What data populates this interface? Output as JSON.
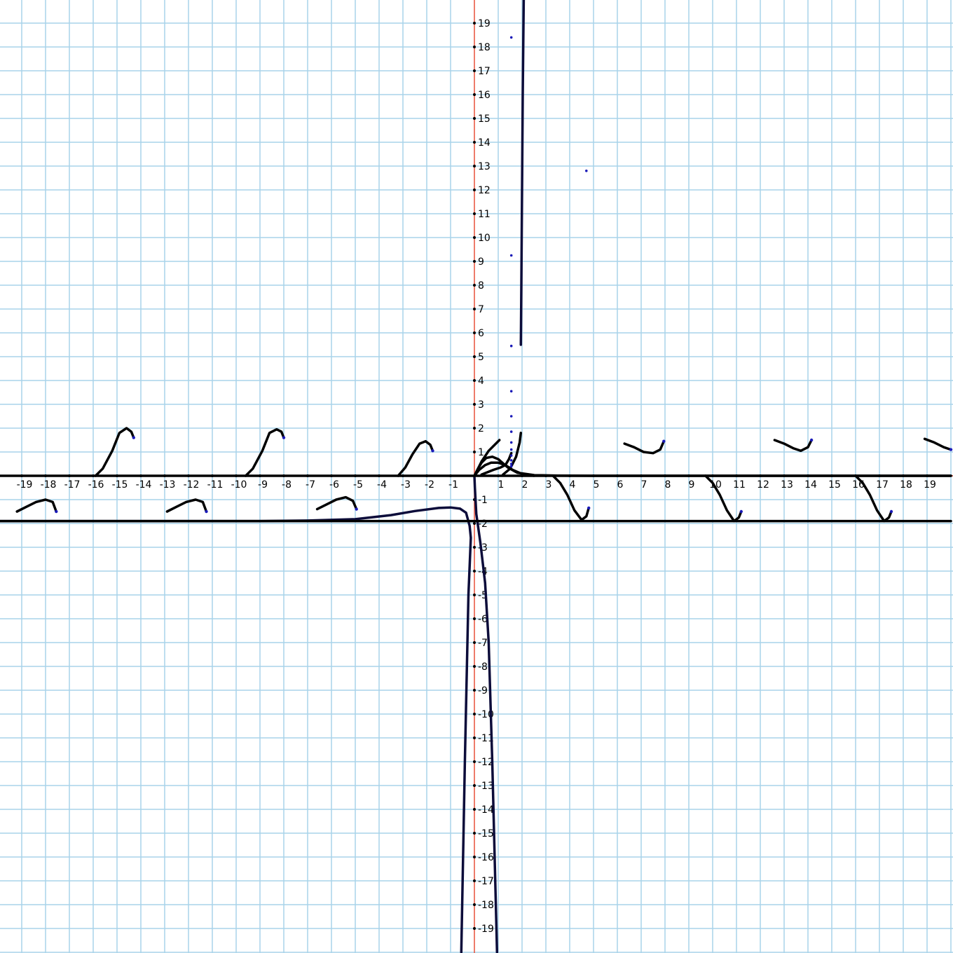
{
  "chart_data": {
    "type": "line",
    "title": "",
    "xlabel": "",
    "ylabel": "",
    "xlim": [
      -20,
      20
    ],
    "ylim": [
      -20,
      20
    ],
    "grid": true,
    "x_ticks": [
      -19,
      -18,
      -17,
      -16,
      -15,
      -14,
      -13,
      -12,
      -11,
      -10,
      -9,
      -8,
      -7,
      -6,
      -5,
      -4,
      -3,
      -2,
      -1,
      1,
      2,
      3,
      4,
      5,
      6,
      7,
      8,
      9,
      10,
      11,
      12,
      13,
      14,
      15,
      16,
      17,
      18,
      19
    ],
    "y_ticks": [
      -19,
      -18,
      -17,
      -16,
      -15,
      -14,
      -13,
      -12,
      -11,
      -10,
      -9,
      -8,
      -7,
      -6,
      -5,
      -4,
      -3,
      -2,
      -1,
      1,
      2,
      3,
      4,
      5,
      6,
      7,
      8,
      9,
      10,
      11,
      12,
      13,
      14,
      15,
      16,
      17,
      18,
      19
    ],
    "colors": {
      "grid": "#a9d3ea",
      "axes": "#e8503a",
      "curve": "#000000",
      "curve_dark": "#0c0c3a",
      "points": "#1a1ab8"
    },
    "series": [
      {
        "points": [
          [
            -20,
            -1.9
          ],
          [
            -16,
            -1.9
          ],
          [
            -12,
            -1.9
          ],
          [
            -9,
            -1.9
          ],
          [
            -7,
            -1.88
          ],
          [
            -5,
            -1.82
          ],
          [
            -3.5,
            -1.65
          ],
          [
            -2.5,
            -1.48
          ],
          [
            -1.5,
            -1.35
          ],
          [
            -1,
            -1.33
          ],
          [
            -0.6,
            -1.38
          ],
          [
            -0.35,
            -1.55
          ],
          [
            -0.2,
            -2.1
          ],
          [
            -0.15,
            -2.6
          ],
          [
            -0.25,
            -5
          ],
          [
            -0.4,
            -12
          ],
          [
            -0.55,
            -20
          ]
        ]
      },
      {
        "points": [
          [
            0,
            0
          ],
          [
            0.02,
            -0.5
          ],
          [
            0.08,
            -1.6
          ],
          [
            0.25,
            -2.8
          ],
          [
            0.45,
            -4.5
          ],
          [
            0.6,
            -7
          ],
          [
            0.75,
            -12
          ],
          [
            0.85,
            -16
          ],
          [
            0.95,
            -20
          ]
        ]
      },
      {
        "points": [
          [
            0,
            0
          ],
          [
            0.15,
            0.3
          ],
          [
            0.3,
            0.55
          ],
          [
            0.5,
            0.75
          ],
          [
            0.75,
            0.8
          ],
          [
            1,
            0.7
          ],
          [
            1.4,
            0.35
          ],
          [
            1.8,
            0.13
          ],
          [
            2.5,
            0.03
          ],
          [
            3.5,
            0.005
          ],
          [
            5,
            0
          ],
          [
            10,
            0
          ],
          [
            20,
            0
          ]
        ]
      },
      {
        "points": [
          [
            0,
            0
          ],
          [
            0.2,
            0.25
          ],
          [
            0.45,
            0.45
          ],
          [
            0.7,
            0.55
          ],
          [
            1,
            0.55
          ],
          [
            1.3,
            0.45
          ],
          [
            1.6,
            0.25
          ],
          [
            2,
            0.08
          ],
          [
            2.5,
            0
          ]
        ]
      },
      {
        "points": [
          [
            0,
            0
          ],
          [
            0.3,
            0.6
          ],
          [
            0.6,
            1.05
          ],
          [
            0.9,
            1.35
          ],
          [
            1.05,
            1.5
          ]
        ]
      },
      {
        "points": [
          [
            0.3,
            0.05
          ],
          [
            0.8,
            0.25
          ],
          [
            1.1,
            0.35
          ],
          [
            1.3,
            0.45
          ],
          [
            1.45,
            0.7
          ],
          [
            1.55,
            0.95
          ]
        ]
      },
      {
        "points": [
          [
            1.2,
            0.05
          ],
          [
            1.5,
            0.3
          ],
          [
            1.75,
            0.8
          ],
          [
            1.9,
            1.4
          ],
          [
            1.95,
            1.8
          ]
        ]
      },
      {
        "points": [
          [
            1.95,
            5.5
          ],
          [
            1.97,
            8
          ],
          [
            2,
            12
          ],
          [
            2.03,
            16
          ],
          [
            2.07,
            20
          ]
        ]
      },
      {
        "points": [
          [
            -20,
            -1.9
          ],
          [
            20,
            -1.9
          ]
        ]
      },
      {
        "points": [
          [
            -20,
            0
          ],
          [
            20,
            0
          ]
        ]
      },
      {
        "points": [
          [
            -15.9,
            0
          ],
          [
            -15.6,
            0.3
          ],
          [
            -15.2,
            1.05
          ],
          [
            -14.9,
            1.8
          ],
          [
            -14.6,
            2.0
          ],
          [
            -14.4,
            1.85
          ],
          [
            -14.3,
            1.6
          ]
        ]
      },
      {
        "points": [
          [
            -9.6,
            0
          ],
          [
            -9.3,
            0.3
          ],
          [
            -8.9,
            1.05
          ],
          [
            -8.6,
            1.8
          ],
          [
            -8.3,
            1.95
          ],
          [
            -8.1,
            1.85
          ],
          [
            -8.0,
            1.6
          ]
        ]
      },
      {
        "points": [
          [
            -3.2,
            0
          ],
          [
            -2.9,
            0.35
          ],
          [
            -2.6,
            0.9
          ],
          [
            -2.3,
            1.35
          ],
          [
            -2.05,
            1.45
          ],
          [
            -1.85,
            1.3
          ],
          [
            -1.75,
            1.05
          ]
        ]
      },
      {
        "points": [
          [
            -19.2,
            -1.5
          ],
          [
            -18.8,
            -1.3
          ],
          [
            -18.4,
            -1.1
          ],
          [
            -18.0,
            -1.0
          ],
          [
            -17.7,
            -1.1
          ],
          [
            -17.55,
            -1.5
          ]
        ]
      },
      {
        "points": [
          [
            -12.9,
            -1.5
          ],
          [
            -12.5,
            -1.3
          ],
          [
            -12.1,
            -1.1
          ],
          [
            -11.7,
            -1.0
          ],
          [
            -11.4,
            -1.1
          ],
          [
            -11.25,
            -1.5
          ]
        ]
      },
      {
        "points": [
          [
            -6.6,
            -1.4
          ],
          [
            -6.2,
            -1.2
          ],
          [
            -5.8,
            -1.0
          ],
          [
            -5.4,
            -0.9
          ],
          [
            -5.1,
            -1.05
          ],
          [
            -4.95,
            -1.4
          ]
        ]
      },
      {
        "points": [
          [
            3.3,
            0
          ],
          [
            3.6,
            -0.3
          ],
          [
            3.9,
            -0.8
          ],
          [
            4.2,
            -1.45
          ],
          [
            4.5,
            -1.85
          ],
          [
            4.7,
            -1.7
          ],
          [
            4.8,
            -1.35
          ]
        ]
      },
      {
        "points": [
          [
            9.7,
            0
          ],
          [
            10.0,
            -0.3
          ],
          [
            10.3,
            -0.8
          ],
          [
            10.6,
            -1.45
          ],
          [
            10.9,
            -1.9
          ],
          [
            11.1,
            -1.75
          ],
          [
            11.2,
            -1.5
          ]
        ]
      },
      {
        "points": [
          [
            16.0,
            0
          ],
          [
            16.3,
            -0.3
          ],
          [
            16.6,
            -0.8
          ],
          [
            16.9,
            -1.45
          ],
          [
            17.2,
            -1.9
          ],
          [
            17.4,
            -1.75
          ],
          [
            17.5,
            -1.5
          ]
        ]
      },
      {
        "points": [
          [
            6.3,
            1.35
          ],
          [
            6.7,
            1.2
          ],
          [
            7.1,
            1.0
          ],
          [
            7.5,
            0.95
          ],
          [
            7.8,
            1.1
          ],
          [
            7.95,
            1.45
          ]
        ]
      },
      {
        "points": [
          [
            12.6,
            1.5
          ],
          [
            13.0,
            1.35
          ],
          [
            13.4,
            1.15
          ],
          [
            13.7,
            1.05
          ],
          [
            14.0,
            1.2
          ],
          [
            14.15,
            1.5
          ]
        ]
      },
      {
        "points": [
          [
            18.9,
            1.55
          ],
          [
            19.3,
            1.4
          ],
          [
            19.7,
            1.2
          ],
          [
            20.0,
            1.1
          ]
        ]
      }
    ],
    "scatter_points": [
      [
        1.55,
        18.4
      ],
      [
        1.55,
        9.25
      ],
      [
        1.55,
        5.45
      ],
      [
        1.55,
        3.55
      ],
      [
        1.55,
        2.5
      ],
      [
        1.55,
        1.85
      ],
      [
        1.55,
        1.4
      ],
      [
        1.55,
        1.1
      ],
      [
        1.55,
        0.85
      ],
      [
        1.55,
        0.65
      ],
      [
        1.55,
        0.5
      ],
      [
        1.55,
        0.4
      ],
      [
        4.7,
        12.8
      ]
    ]
  }
}
